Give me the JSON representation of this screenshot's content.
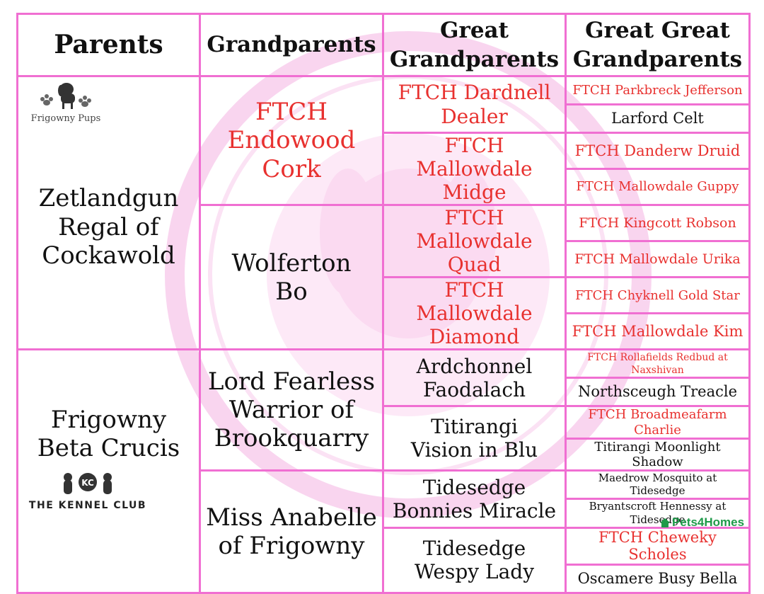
{
  "headers": {
    "parents": "Parents",
    "grandparents": "Grandparents",
    "great_line1": "Great",
    "great_line2": "Grandparents",
    "gg_line1": "Great Great",
    "gg_line2": "Grandparents"
  },
  "parents": [
    {
      "name_lines": [
        "Zetlandgun",
        "Regal of",
        "Cockawold"
      ]
    },
    {
      "name_lines": [
        "Frigowny",
        "Beta Crucis"
      ]
    }
  ],
  "grandparents": [
    {
      "name_lines": [
        "FTCH",
        "Endowood",
        "Cork"
      ],
      "color": "#e8312f"
    },
    {
      "name_lines": [
        "Wolferton",
        "Bo"
      ],
      "color": "#111111"
    },
    {
      "name_lines": [
        "Lord Fearless",
        "Warrior of",
        "Brookquarry"
      ],
      "color": "#111111"
    },
    {
      "name_lines": [
        "Miss Anabelle",
        "of Frigowny"
      ],
      "color": "#111111"
    }
  ],
  "great_grandparents": [
    {
      "name_lines": [
        "FTCH Dardnell",
        "Dealer"
      ],
      "color": "#e8312f"
    },
    {
      "name_lines": [
        "FTCH Mallowdale",
        "Midge"
      ],
      "color": "#e8312f"
    },
    {
      "name_lines": [
        "FTCH Mallowdale",
        "Quad"
      ],
      "color": "#e8312f"
    },
    {
      "name_lines": [
        "FTCH Mallowdale",
        "Diamond"
      ],
      "color": "#e8312f"
    },
    {
      "name_lines": [
        "Ardchonnel",
        "Faodalach"
      ],
      "color": "#111111"
    },
    {
      "name_lines": [
        "Titirangi",
        "Vision in Blu"
      ],
      "color": "#111111"
    },
    {
      "name_lines": [
        "Tidesedge",
        "Bonnies Miracle"
      ],
      "color": "#111111"
    },
    {
      "name_lines": [
        "Tidesedge",
        "Wespy Lady"
      ],
      "color": "#111111"
    }
  ],
  "great_great_grandparents": [
    {
      "name_lines": [
        "FTCH Parkbreck Jefferson"
      ],
      "color": "#e8312f"
    },
    {
      "name_lines": [
        "Larford Celt"
      ],
      "color": "#111111"
    },
    {
      "name_lines": [
        "FTCH Danderw Druid"
      ],
      "color": "#e8312f"
    },
    {
      "name_lines": [
        "FTCH Mallowdale Guppy"
      ],
      "color": "#e8312f"
    },
    {
      "name_lines": [
        "FTCH Kingcott Robson"
      ],
      "color": "#e8312f"
    },
    {
      "name_lines": [
        "FTCH Mallowdale Urika"
      ],
      "color": "#e8312f"
    },
    {
      "name_lines": [
        "FTCH Chyknell Gold Star"
      ],
      "color": "#e8312f"
    },
    {
      "name_lines": [
        "FTCH Mallowdale Kim"
      ],
      "color": "#e8312f"
    },
    {
      "name_lines": [
        "FTCH Rollafields Redbud at",
        "Naxshivan"
      ],
      "color": "#e8312f"
    },
    {
      "name_lines": [
        "Northsceugh Treacle"
      ],
      "color": "#111111"
    },
    {
      "name_lines": [
        "FTCH Broadmeafarm Charlie"
      ],
      "color": "#e8312f"
    },
    {
      "name_lines": [
        "Titirangi Moonlight Shadow"
      ],
      "color": "#111111"
    },
    {
      "name_lines": [
        "Maedrow Mosquito at Tidesedge"
      ],
      "color": "#111111"
    },
    {
      "name_lines": [
        "Bryantscroft Hennessy at",
        "Tidesedge"
      ],
      "color": "#111111"
    },
    {
      "name_lines": [
        "FTCH Cheweky Scholes"
      ],
      "color": "#e8312f"
    },
    {
      "name_lines": [
        "Oscamere Busy Bella"
      ],
      "color": "#111111"
    }
  ],
  "logos": {
    "frigowny_pups": "Frigowny Pups",
    "kennel_club": "THE KENNEL CLUB",
    "kc_badge": "KC",
    "pets4homes": "Pets4Homes"
  },
  "colors": {
    "border": "#f06fd2",
    "ftch_red": "#e8312f",
    "watermark_pink": "#f7c8ea",
    "pets4homes_green": "#1f9a4a"
  }
}
